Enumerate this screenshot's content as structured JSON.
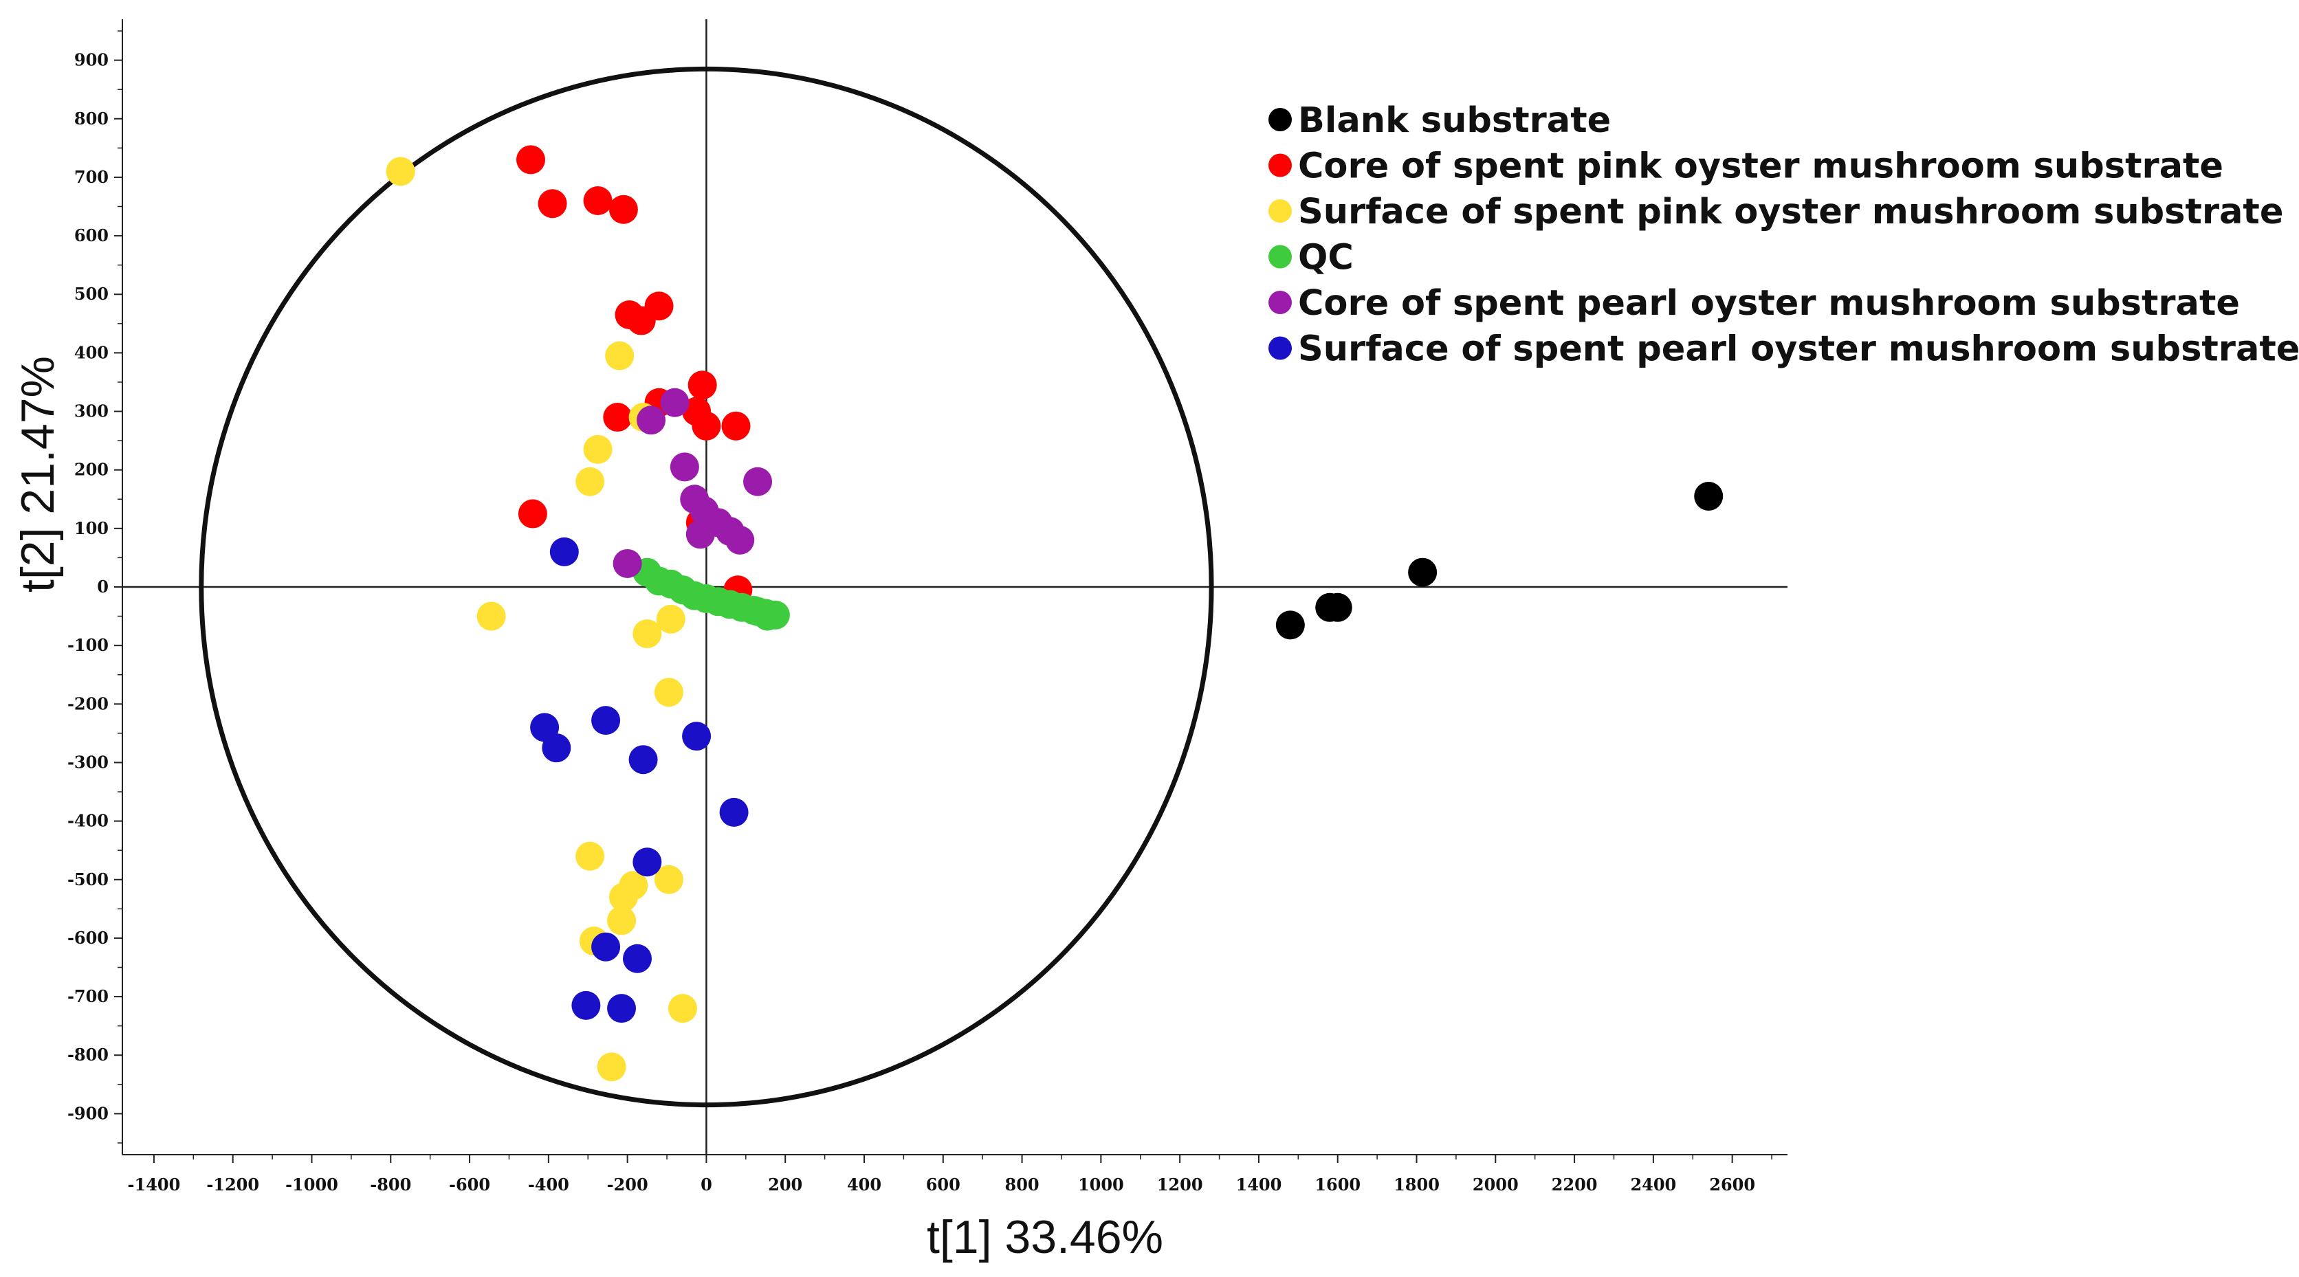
{
  "chart_data": {
    "type": "scatter",
    "title": "",
    "xlabel": "t[1]   33.46%",
    "ylabel": "t[2]   21.47%",
    "xlim": [
      -1480,
      2740
    ],
    "ylim": [
      -970,
      970
    ],
    "xticks": [
      -1400,
      -1200,
      -1000,
      -800,
      -600,
      -400,
      -200,
      0,
      200,
      400,
      600,
      800,
      1000,
      1200,
      1400,
      1600,
      1800,
      2000,
      2200,
      2400,
      2600
    ],
    "yticks": [
      -900,
      -800,
      -700,
      -600,
      -500,
      -400,
      -300,
      -200,
      -100,
      0,
      100,
      200,
      300,
      400,
      500,
      600,
      700,
      800,
      900
    ],
    "confidence_ellipse": {
      "rx": 1280,
      "ry": 885
    },
    "grid": false,
    "legend_position": "top-right",
    "series": [
      {
        "name": "Blank substrate",
        "color": "#000000",
        "points": [
          [
            1480,
            -65
          ],
          [
            1580,
            -35
          ],
          [
            1600,
            -35
          ],
          [
            1815,
            25
          ],
          [
            2540,
            155
          ]
        ]
      },
      {
        "name": "Core of spent pink oyster mushroom substrate",
        "color": "#ff0000",
        "points": [
          [
            -445,
            730
          ],
          [
            -390,
            655
          ],
          [
            -275,
            660
          ],
          [
            -210,
            645
          ],
          [
            -195,
            465
          ],
          [
            -165,
            455
          ],
          [
            -120,
            480
          ],
          [
            -225,
            290
          ],
          [
            -120,
            315
          ],
          [
            -25,
            300
          ],
          [
            0,
            275
          ],
          [
            -10,
            345
          ],
          [
            75,
            275
          ],
          [
            -440,
            125
          ],
          [
            -15,
            110
          ],
          [
            80,
            -5
          ]
        ]
      },
      {
        "name": "Surface of spent pink oyster mushroom substrate",
        "color": "#ffe135",
        "points": [
          [
            -775,
            710
          ],
          [
            -220,
            395
          ],
          [
            -275,
            235
          ],
          [
            -295,
            180
          ],
          [
            -160,
            290
          ],
          [
            -545,
            -50
          ],
          [
            -150,
            -80
          ],
          [
            -90,
            -55
          ],
          [
            -95,
            -180
          ],
          [
            -295,
            -460
          ],
          [
            -210,
            -530
          ],
          [
            -185,
            -510
          ],
          [
            -95,
            -500
          ],
          [
            -285,
            -605
          ],
          [
            -215,
            -570
          ],
          [
            -240,
            -820
          ],
          [
            -60,
            -720
          ]
        ]
      },
      {
        "name": "QC",
        "color": "#3ecc3e",
        "points": [
          [
            -150,
            25
          ],
          [
            -120,
            10
          ],
          [
            -90,
            5
          ],
          [
            -60,
            -5
          ],
          [
            -30,
            -15
          ],
          [
            0,
            -20
          ],
          [
            30,
            -25
          ],
          [
            60,
            -30
          ],
          [
            90,
            -35
          ],
          [
            120,
            -40
          ],
          [
            150,
            -45
          ],
          [
            175,
            -48
          ],
          [
            155,
            -50
          ],
          [
            130,
            -42
          ]
        ]
      },
      {
        "name": "Core of spent pearl oyster mushroom substrate",
        "color": "#9b1bab",
        "points": [
          [
            -80,
            315
          ],
          [
            -140,
            285
          ],
          [
            -55,
            205
          ],
          [
            130,
            180
          ],
          [
            -30,
            150
          ],
          [
            -5,
            130
          ],
          [
            30,
            110
          ],
          [
            60,
            95
          ],
          [
            -15,
            90
          ],
          [
            85,
            80
          ],
          [
            -200,
            40
          ]
        ]
      },
      {
        "name": "Surface of spent pearl oyster mushroom substrate",
        "color": "#1a10c8",
        "points": [
          [
            -360,
            60
          ],
          [
            -410,
            -240
          ],
          [
            -380,
            -275
          ],
          [
            -255,
            -228
          ],
          [
            -160,
            -295
          ],
          [
            -25,
            -255
          ],
          [
            70,
            -385
          ],
          [
            -150,
            -470
          ],
          [
            -255,
            -615
          ],
          [
            -175,
            -635
          ],
          [
            -305,
            -715
          ],
          [
            -215,
            -720
          ]
        ]
      }
    ]
  }
}
